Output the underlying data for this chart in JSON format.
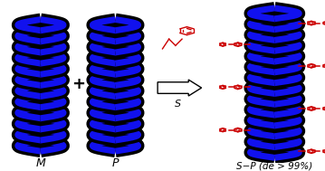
{
  "bg_color": "#ffffff",
  "helix_color": "#1111ee",
  "helix_outline": "#000000",
  "red_color": "#cc0000",
  "arrow_color": "#ffffff",
  "arrow_edge": "#000000",
  "label_M": "M",
  "label_P": "P",
  "label_SP": "S−P (de > 99%)",
  "label_S": "S",
  "figsize": [
    3.59,
    1.89
  ],
  "dpi": 100
}
